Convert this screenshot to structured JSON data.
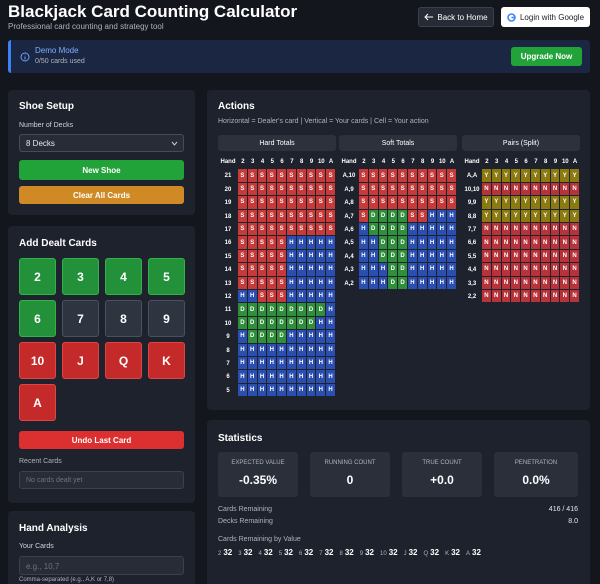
{
  "header": {
    "title": "Blackjack Card Counting Calculator",
    "subtitle": "Professional card counting and strategy tool",
    "back_button": "Back to Home",
    "login_button": "Login with Google"
  },
  "banner": {
    "title": "Demo Mode",
    "usage": "0/50 cards used",
    "button": "Upgrade Now"
  },
  "shoe_setup": {
    "title": "Shoe Setup",
    "decks_label": "Number of Decks",
    "decks_value": "8 Decks",
    "new_shoe": "New Shoe",
    "clear": "Clear All Cards"
  },
  "dealt_cards": {
    "title": "Add Dealt Cards",
    "cards": [
      "2",
      "3",
      "4",
      "5",
      "6",
      "7",
      "8",
      "9",
      "10",
      "J",
      "Q",
      "K",
      "A"
    ],
    "undo": "Undo Last Card",
    "recent_label": "Recent Cards",
    "recent_placeholder": "No cards dealt yet"
  },
  "hand_analysis": {
    "title": "Hand Analysis",
    "cards_label": "Your Cards",
    "placeholder": "e.g., 10,7",
    "hint": "Comma-separated (e.g., A,K or 7,8)"
  },
  "actions": {
    "title": "Actions",
    "legend": "Horizontal = Dealer's card | Vertical = Your cards | Cell = Your action",
    "tabs": [
      "Hard Totals",
      "Soft Totals",
      "Pairs (Split)"
    ],
    "tables": [
      {
        "headers": [
          "Hand",
          "2",
          "3",
          "4",
          "5",
          "6",
          "7",
          "8",
          "9",
          "10",
          "A"
        ],
        "rows": [
          {
            "hand": "21",
            "cells": "SSSSSSSSSS"
          },
          {
            "hand": "20",
            "cells": "SSSSSSSSSS"
          },
          {
            "hand": "19",
            "cells": "SSSSSSSSSS"
          },
          {
            "hand": "18",
            "cells": "SSSSSSSSSS"
          },
          {
            "hand": "17",
            "cells": "SSSSSSSSSS"
          },
          {
            "hand": "16",
            "cells": "SSSSSHHHHH"
          },
          {
            "hand": "15",
            "cells": "SSSSSHHHHH"
          },
          {
            "hand": "14",
            "cells": "SSSSSHHHHH"
          },
          {
            "hand": "13",
            "cells": "SSSSSHHHHH"
          },
          {
            "hand": "12",
            "cells": "HHSSSHHHHH"
          },
          {
            "hand": "11",
            "cells": "DDDDDDDDDH"
          },
          {
            "hand": "10",
            "cells": "DDDDDDDDHH"
          },
          {
            "hand": "9",
            "cells": "HDDDDHHHHH"
          },
          {
            "hand": "8",
            "cells": "HHHHHHHHHH"
          },
          {
            "hand": "7",
            "cells": "HHHHHHHHHH"
          },
          {
            "hand": "6",
            "cells": "HHHHHHHHHH"
          },
          {
            "hand": "5",
            "cells": "HHHHHHHHHH"
          }
        ]
      },
      {
        "headers": [
          "Hand",
          "2",
          "3",
          "4",
          "5",
          "6",
          "7",
          "8",
          "9",
          "10",
          "A"
        ],
        "rows": [
          {
            "hand": "A,10",
            "cells": "SSSSSSSSSS"
          },
          {
            "hand": "A,9",
            "cells": "SSSSSSSSSS"
          },
          {
            "hand": "A,8",
            "cells": "SSSSSSSSSS"
          },
          {
            "hand": "A,7",
            "cells": "SDDDDSSHHH"
          },
          {
            "hand": "A,6",
            "cells": "HDDDDHHHHH"
          },
          {
            "hand": "A,5",
            "cells": "HHDDDHHHHH"
          },
          {
            "hand": "A,4",
            "cells": "HHDDDHHHHH"
          },
          {
            "hand": "A,3",
            "cells": "HHHDDHHHHH"
          },
          {
            "hand": "A,2",
            "cells": "HHHDDHHHHH"
          }
        ]
      },
      {
        "headers": [
          "Hand",
          "2",
          "3",
          "4",
          "5",
          "6",
          "7",
          "8",
          "9",
          "10",
          "A"
        ],
        "rows": [
          {
            "hand": "A,A",
            "cells": "YYYYYYYYYY"
          },
          {
            "hand": "10,10",
            "cells": "NNNNNNNNNN"
          },
          {
            "hand": "9,9",
            "cells": "YYYYYYYYYY"
          },
          {
            "hand": "8,8",
            "cells": "YYYYYYYYYY"
          },
          {
            "hand": "7,7",
            "cells": "NNNNNNNNNN"
          },
          {
            "hand": "6,6",
            "cells": "NNNNNNNNNN"
          },
          {
            "hand": "5,5",
            "cells": "NNNNNNNNNN"
          },
          {
            "hand": "4,4",
            "cells": "NNNNNNNNNN"
          },
          {
            "hand": "3,3",
            "cells": "NNNNNNNNNN"
          },
          {
            "hand": "2,2",
            "cells": "NNNNNNNNNN"
          }
        ]
      }
    ]
  },
  "statistics": {
    "title": "Statistics",
    "cards": [
      {
        "label": "EXPECTED VALUE",
        "value": "-0.35%"
      },
      {
        "label": "RUNNING COUNT",
        "value": "0"
      },
      {
        "label": "TRUE COUNT",
        "value": "+0.0"
      },
      {
        "label": "PENETRATION",
        "value": "0.0%"
      }
    ],
    "rows": [
      {
        "label": "Cards Remaining",
        "value": "416 / 416"
      },
      {
        "label": "Decks Remaining",
        "value": "8.0"
      }
    ],
    "by_value_label": "Cards Remaining by Value",
    "by_value": [
      {
        "rank": "2",
        "count": 32
      },
      {
        "rank": "3",
        "count": 32
      },
      {
        "rank": "4",
        "count": 32
      },
      {
        "rank": "5",
        "count": 32
      },
      {
        "rank": "6",
        "count": 32
      },
      {
        "rank": "7",
        "count": 32
      },
      {
        "rank": "8",
        "count": 32
      },
      {
        "rank": "9",
        "count": 32
      },
      {
        "rank": "10",
        "count": 32
      },
      {
        "rank": "J",
        "count": 32
      },
      {
        "rank": "Q",
        "count": 32
      },
      {
        "rank": "K",
        "count": 32
      },
      {
        "rank": "A",
        "count": 32
      }
    ]
  }
}
